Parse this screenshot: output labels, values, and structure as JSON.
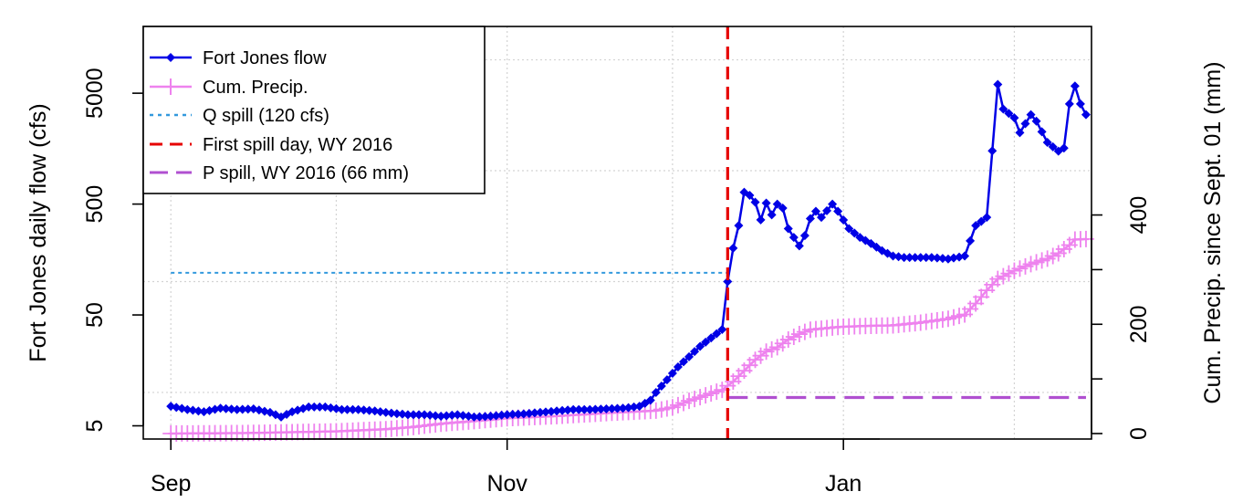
{
  "chart_data": {
    "type": "line",
    "x_axis": {
      "type": "date",
      "range": [
        "2015-08-27",
        "2016-02-15"
      ],
      "tick_labels": [
        "Sep",
        "Nov",
        "Jan"
      ],
      "tick_dates": [
        "2015-09-01",
        "2015-11-01",
        "2016-01-01"
      ],
      "grid_dates": [
        "2015-09-01",
        "2015-10-01",
        "2015-11-01",
        "2015-12-01",
        "2016-01-01",
        "2016-02-01"
      ]
    },
    "y_left": {
      "label": "Fort Jones daily flow (cfs)",
      "scale": "log",
      "range": [
        3.8,
        20000
      ],
      "tick_labels": [
        "5",
        "50",
        "500",
        "5000"
      ],
      "tick_values": [
        5,
        50,
        500,
        5000
      ],
      "grid_values": [
        10,
        100,
        1000,
        10000
      ]
    },
    "y_right": {
      "label": "Cum. Precip. since Sept. 01 (mm)",
      "scale": "linear",
      "range": [
        -10,
        745
      ],
      "tick_labels": [
        "0",
        "200",
        "400"
      ],
      "tick_values": [
        0,
        200,
        400
      ],
      "minor_tick_values": [
        100,
        300
      ]
    },
    "grid": true,
    "legend": {
      "position": "top-left",
      "entries": [
        "Fort Jones flow",
        "Cum. Precip.",
        "Q spill (120 cfs)",
        "First spill day, WY 2016",
        "P spill, WY 2016 (66 mm)"
      ]
    },
    "series": [
      {
        "name": "Fort Jones flow",
        "axis": "left",
        "color": "#0000e6",
        "style": "line-diamond",
        "points": [
          [
            "2015-09-01",
            7.5
          ],
          [
            "2015-09-04",
            7.0
          ],
          [
            "2015-09-07",
            6.7
          ],
          [
            "2015-09-10",
            7.2
          ],
          [
            "2015-09-13",
            7.0
          ],
          [
            "2015-09-16",
            7.1
          ],
          [
            "2015-09-19",
            6.6
          ],
          [
            "2015-09-21",
            6.0
          ],
          [
            "2015-09-23",
            6.7
          ],
          [
            "2015-09-26",
            7.4
          ],
          [
            "2015-09-29",
            7.4
          ],
          [
            "2015-10-02",
            7.0
          ],
          [
            "2015-10-05",
            7.0
          ],
          [
            "2015-10-08",
            6.8
          ],
          [
            "2015-10-11",
            6.5
          ],
          [
            "2015-10-14",
            6.3
          ],
          [
            "2015-10-17",
            6.3
          ],
          [
            "2015-10-20",
            6.1
          ],
          [
            "2015-10-23",
            6.3
          ],
          [
            "2015-10-26",
            6.0
          ],
          [
            "2015-10-29",
            6.1
          ],
          [
            "2015-11-01",
            6.3
          ],
          [
            "2015-11-04",
            6.4
          ],
          [
            "2015-11-07",
            6.6
          ],
          [
            "2015-11-10",
            6.8
          ],
          [
            "2015-11-13",
            7.0
          ],
          [
            "2015-11-16",
            7.0
          ],
          [
            "2015-11-19",
            7.1
          ],
          [
            "2015-11-22",
            7.2
          ],
          [
            "2015-11-25",
            7.5
          ],
          [
            "2015-11-27",
            8.5
          ],
          [
            "2015-11-28",
            10.0
          ],
          [
            "2015-11-30",
            13.0
          ],
          [
            "2015-12-02",
            17.0
          ],
          [
            "2015-12-04",
            21.0
          ],
          [
            "2015-12-06",
            26.0
          ],
          [
            "2015-12-08",
            31.0
          ],
          [
            "2015-12-10",
            37.0
          ],
          [
            "2015-12-11",
            100.0
          ],
          [
            "2015-12-12",
            200.0
          ],
          [
            "2015-12-13",
            320.0
          ],
          [
            "2015-12-14",
            640.0
          ],
          [
            "2015-12-15",
            600.0
          ],
          [
            "2015-12-16",
            520.0
          ],
          [
            "2015-12-17",
            360.0
          ],
          [
            "2015-12-18",
            510.0
          ],
          [
            "2015-12-19",
            400.0
          ],
          [
            "2015-12-20",
            500.0
          ],
          [
            "2015-12-21",
            460.0
          ],
          [
            "2015-12-22",
            300.0
          ],
          [
            "2015-12-23",
            250.0
          ],
          [
            "2015-12-24",
            210.0
          ],
          [
            "2015-12-25",
            260.0
          ],
          [
            "2015-12-26",
            370.0
          ],
          [
            "2015-12-27",
            430.0
          ],
          [
            "2015-12-28",
            380.0
          ],
          [
            "2015-12-30",
            500.0
          ],
          [
            "2015-12-31",
            430.0
          ],
          [
            "2016-01-02",
            300.0
          ],
          [
            "2016-01-04",
            250.0
          ],
          [
            "2016-01-06",
            220.0
          ],
          [
            "2016-01-08",
            190.0
          ],
          [
            "2016-01-10",
            170.0
          ],
          [
            "2016-01-12",
            165.0
          ],
          [
            "2016-01-14",
            165.0
          ],
          [
            "2016-01-17",
            165.0
          ],
          [
            "2016-01-20",
            160.0
          ],
          [
            "2016-01-23",
            170.0
          ],
          [
            "2016-01-25",
            320.0
          ],
          [
            "2016-01-27",
            380.0
          ],
          [
            "2016-01-29",
            6000.0
          ],
          [
            "2016-01-30",
            3600.0
          ],
          [
            "2016-02-01",
            3000.0
          ],
          [
            "2016-02-02",
            2200.0
          ],
          [
            "2016-02-04",
            3200.0
          ],
          [
            "2016-02-05",
            2800.0
          ],
          [
            "2016-02-07",
            1800.0
          ],
          [
            "2016-02-09",
            1500.0
          ],
          [
            "2016-02-10",
            1600.0
          ],
          [
            "2016-02-11",
            4000.0
          ],
          [
            "2016-02-12",
            5800.0
          ],
          [
            "2016-02-13",
            4000.0
          ],
          [
            "2016-02-14",
            3200.0
          ]
        ]
      },
      {
        "name": "Cum. Precip.",
        "axis": "right",
        "color": "#ee82ee",
        "style": "line-plus",
        "points": [
          [
            "2015-09-01",
            0
          ],
          [
            "2015-09-15",
            1
          ],
          [
            "2015-10-01",
            4
          ],
          [
            "2015-10-10",
            8
          ],
          [
            "2015-10-15",
            12
          ],
          [
            "2015-10-20",
            18
          ],
          [
            "2015-10-25",
            22
          ],
          [
            "2015-11-01",
            28
          ],
          [
            "2015-11-10",
            32
          ],
          [
            "2015-11-20",
            38
          ],
          [
            "2015-11-28",
            42
          ],
          [
            "2015-12-01",
            48
          ],
          [
            "2015-12-04",
            60
          ],
          [
            "2015-12-07",
            70
          ],
          [
            "2015-12-10",
            80
          ],
          [
            "2015-12-12",
            95
          ],
          [
            "2015-12-14",
            115
          ],
          [
            "2015-12-16",
            135
          ],
          [
            "2015-12-18",
            150
          ],
          [
            "2015-12-20",
            158
          ],
          [
            "2015-12-22",
            172
          ],
          [
            "2015-12-24",
            182
          ],
          [
            "2015-12-26",
            190
          ],
          [
            "2015-12-28",
            192
          ],
          [
            "2015-12-31",
            195
          ],
          [
            "2016-01-05",
            197
          ],
          [
            "2016-01-10",
            198
          ],
          [
            "2016-01-15",
            203
          ],
          [
            "2016-01-20",
            210
          ],
          [
            "2016-01-23",
            218
          ],
          [
            "2016-01-25",
            238
          ],
          [
            "2016-01-27",
            262
          ],
          [
            "2016-01-29",
            283
          ],
          [
            "2016-02-01",
            298
          ],
          [
            "2016-02-04",
            310
          ],
          [
            "2016-02-07",
            320
          ],
          [
            "2016-02-09",
            330
          ],
          [
            "2016-02-11",
            345
          ],
          [
            "2016-02-12",
            355
          ],
          [
            "2016-02-14",
            356
          ]
        ]
      }
    ],
    "reference_lines": [
      {
        "name": "Q spill (120 cfs)",
        "axis": "left",
        "orientation": "horizontal",
        "value": 120,
        "x_range": [
          "2015-09-01",
          "2015-12-11"
        ],
        "color": "#3399dd",
        "dash": "dotted"
      },
      {
        "name": "First spill day, WY 2016",
        "orientation": "vertical",
        "value": "2015-12-11",
        "color": "#e60000",
        "dash": "dashed"
      },
      {
        "name": "P spill, WY 2016 (66 mm)",
        "axis": "right",
        "orientation": "horizontal",
        "value": 66,
        "x_range": [
          "2015-12-11",
          "2016-02-14"
        ],
        "color": "#b050d0",
        "dash": "long-dashed"
      }
    ]
  }
}
